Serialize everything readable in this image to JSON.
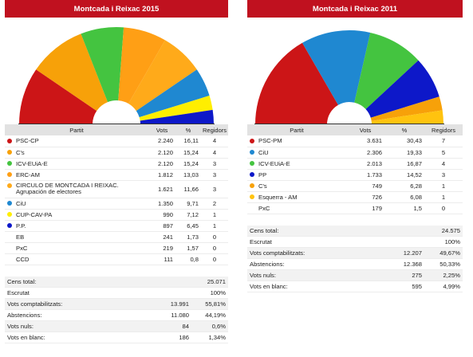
{
  "panels": [
    {
      "title": "Montcada i Reixac 2015",
      "headers": {
        "party": "Partit",
        "votes": "Vots",
        "pct": "%",
        "seats": "Regidors"
      },
      "parties": [
        {
          "name": "PSC-CP",
          "votes": "2.240",
          "pct": "16,11",
          "seats": "4",
          "color": "#cc1517"
        },
        {
          "name": "C's",
          "votes": "2.120",
          "pct": "15,24",
          "seats": "4",
          "color": "#f7a109"
        },
        {
          "name": "ICV-EUiA-E",
          "votes": "2.120",
          "pct": "15,24",
          "seats": "3",
          "color": "#44c440"
        },
        {
          "name": "ERC-AM",
          "votes": "1.812",
          "pct": "13,03",
          "seats": "3",
          "color": "#ff9f15"
        },
        {
          "name": "CIRCULO DE MONTCADA I REIXAC. Agrupación de electores",
          "votes": "1.621",
          "pct": "11,66",
          "seats": "3",
          "color": "#ffaa1a"
        },
        {
          "name": "CiU",
          "votes": "1.350",
          "pct": "9,71",
          "seats": "2",
          "color": "#1f88d1"
        },
        {
          "name": "CUP-CAV-PA",
          "votes": "990",
          "pct": "7,12",
          "seats": "1",
          "color": "#ffee00"
        },
        {
          "name": "P.P.",
          "votes": "897",
          "pct": "6,45",
          "seats": "1",
          "color": "#0d18c9"
        },
        {
          "name": "EB",
          "votes": "241",
          "pct": "1,73",
          "seats": "0",
          "color": ""
        },
        {
          "name": "PxC",
          "votes": "219",
          "pct": "1,57",
          "seats": "0",
          "color": ""
        },
        {
          "name": "CCD",
          "votes": "111",
          "pct": "0,8",
          "seats": "0",
          "color": ""
        }
      ],
      "summary": [
        {
          "label": "Cens total:",
          "votes": "",
          "pct": "25.071"
        },
        {
          "label": "Escrutat",
          "votes": "",
          "pct": "100%"
        },
        {
          "label": "Vots comptabilitzats:",
          "votes": "13.991",
          "pct": "55,81%"
        },
        {
          "label": "Abstencions:",
          "votes": "11.080",
          "pct": "44,19%"
        },
        {
          "label": "Vots nuls:",
          "votes": "84",
          "pct": "0,6%"
        },
        {
          "label": "Vots en blanc:",
          "votes": "186",
          "pct": "1,34%"
        }
      ]
    },
    {
      "title": "Montcada i Reixac 2011",
      "headers": {
        "party": "Partit",
        "votes": "Vots",
        "pct": "%",
        "seats": "Regidors"
      },
      "parties": [
        {
          "name": "PSC-PM",
          "votes": "3.631",
          "pct": "30,43",
          "seats": "7",
          "color": "#cc1517"
        },
        {
          "name": "CiU",
          "votes": "2.306",
          "pct": "19,33",
          "seats": "5",
          "color": "#1f88d1"
        },
        {
          "name": "ICV-EUiA-E",
          "votes": "2.013",
          "pct": "16,87",
          "seats": "4",
          "color": "#44c440"
        },
        {
          "name": "PP",
          "votes": "1.733",
          "pct": "14,52",
          "seats": "3",
          "color": "#0d18c9"
        },
        {
          "name": "C's",
          "votes": "749",
          "pct": "6,28",
          "seats": "1",
          "color": "#f7a109"
        },
        {
          "name": "Esquerra - AM",
          "votes": "726",
          "pct": "6,08",
          "seats": "1",
          "color": "#ffc30f"
        },
        {
          "name": "PxC",
          "votes": "179",
          "pct": "1,5",
          "seats": "0",
          "color": ""
        }
      ],
      "summary": [
        {
          "label": "Cens total:",
          "votes": "",
          "pct": "24.575"
        },
        {
          "label": "Escrutat",
          "votes": "",
          "pct": "100%"
        },
        {
          "label": "Vots comptabilitzats:",
          "votes": "12.207",
          "pct": "49,67%"
        },
        {
          "label": "Abstencions:",
          "votes": "12.368",
          "pct": "50,33%"
        },
        {
          "label": "Vots nuls:",
          "votes": "275",
          "pct": "2,25%"
        },
        {
          "label": "Vots en blanc:",
          "votes": "595",
          "pct": "4,99%"
        }
      ]
    }
  ],
  "chart_data": [
    {
      "type": "pie",
      "title": "Montcada i Reixac 2015",
      "categories": [
        "PSC-CP",
        "C's",
        "ICV-EUiA-E",
        "ERC-AM",
        "CIRCULO DE MONTCADA I REIXAC. Agrupación de electores",
        "CiU",
        "CUP-CAV-PA",
        "P.P."
      ],
      "values": [
        4,
        4,
        3,
        3,
        3,
        2,
        1,
        1
      ],
      "colors": [
        "#cc1517",
        "#f7a109",
        "#44c440",
        "#ff9f15",
        "#ffaa1a",
        "#1f88d1",
        "#ffee00",
        "#0d18c9"
      ]
    },
    {
      "type": "pie",
      "title": "Montcada i Reixac 2011",
      "categories": [
        "PSC-PM",
        "CiU",
        "ICV-EUiA-E",
        "PP",
        "C's",
        "Esquerra - AM"
      ],
      "values": [
        7,
        5,
        4,
        3,
        1,
        1
      ],
      "colors": [
        "#cc1517",
        "#1f88d1",
        "#44c440",
        "#0d18c9",
        "#f7a109",
        "#ffc30f"
      ]
    }
  ]
}
